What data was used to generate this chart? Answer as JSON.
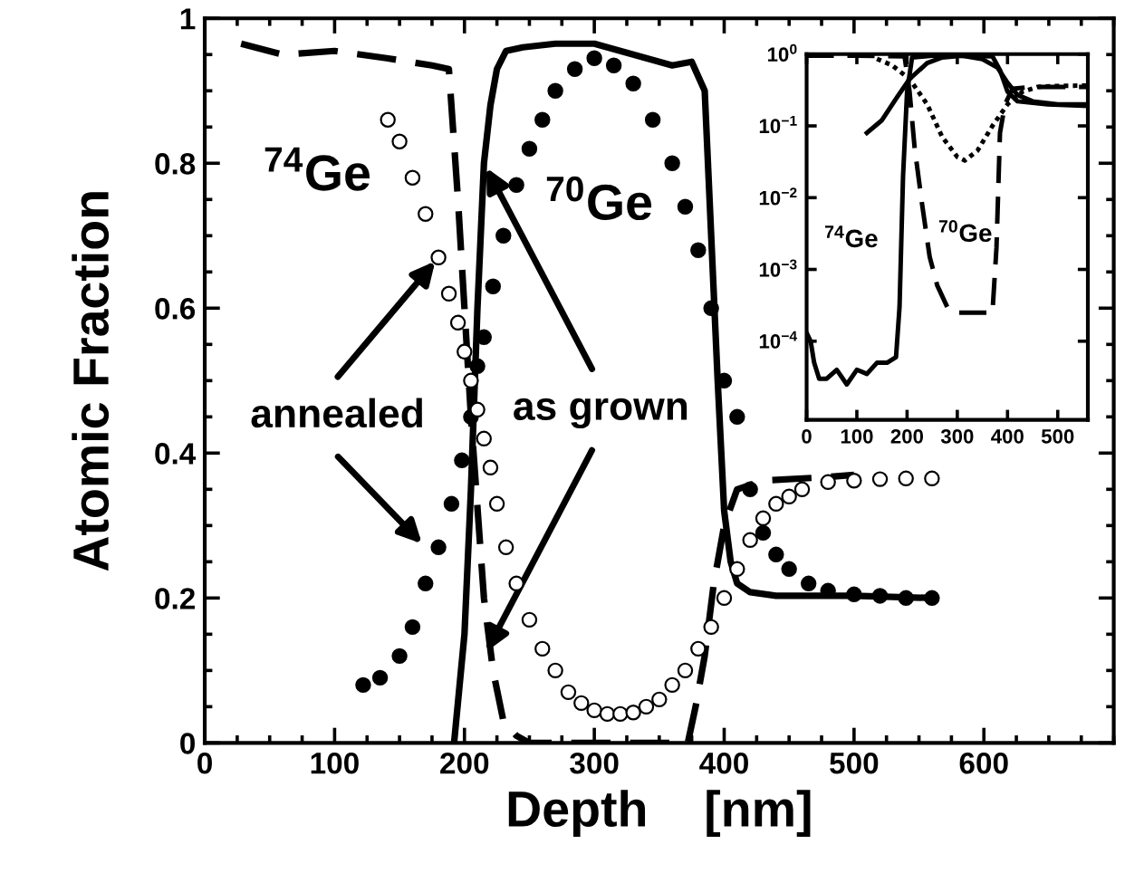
{
  "chart_data": [
    {
      "type": "line",
      "xlabel": "Depth    [nm]",
      "ylabel": "Atomic Fraction",
      "xlim": [
        0,
        700
      ],
      "ylim": [
        0,
        1
      ],
      "xticks": [
        0,
        100,
        200,
        300,
        400,
        500,
        600
      ],
      "yticks": [
        0,
        0.2,
        0.4,
        0.6,
        0.8,
        1
      ],
      "grid": false,
      "legend": false,
      "series": [
        {
          "line_style": "dashed",
          "color": "#000000",
          "x": [
            28,
            60,
            100,
            140,
            175,
            188,
            195,
            205,
            215,
            222,
            230,
            240,
            250,
            300,
            372,
            378,
            385,
            392,
            400,
            410,
            430,
            480,
            500
          ],
          "values": [
            0.965,
            0.95,
            0.955,
            0.945,
            0.935,
            0.93,
            0.75,
            0.45,
            0.2,
            0.1,
            0.03,
            0.01,
            0,
            0,
            0,
            0.05,
            0.12,
            0.22,
            0.3,
            0.35,
            0.362,
            0.367,
            0.37
          ]
        },
        {
          "line_style": "solid",
          "color": "#000000",
          "x": [
            192,
            200,
            205,
            210,
            215,
            220,
            225,
            232,
            245,
            270,
            300,
            330,
            360,
            375,
            385,
            390,
            395,
            400,
            405,
            410,
            420,
            440,
            500,
            560
          ],
          "values": [
            0,
            0.15,
            0.35,
            0.6,
            0.8,
            0.88,
            0.93,
            0.955,
            0.96,
            0.965,
            0.965,
            0.95,
            0.935,
            0.94,
            0.9,
            0.7,
            0.5,
            0.32,
            0.25,
            0.22,
            0.208,
            0.203,
            0.203,
            0.2
          ]
        },
        {
          "type": "scatter",
          "marker": "circle",
          "color": "#000000",
          "x": [
            122,
            135,
            150,
            160,
            170,
            180,
            190,
            198,
            205,
            210,
            215,
            222,
            230,
            240,
            250,
            260,
            270,
            285,
            300,
            315,
            330,
            345,
            360,
            370,
            380,
            390,
            400,
            410,
            420,
            430,
            440,
            450,
            465,
            480,
            500,
            520,
            540,
            560
          ],
          "values": [
            0.08,
            0.09,
            0.12,
            0.16,
            0.22,
            0.27,
            0.33,
            0.39,
            0.45,
            0.52,
            0.56,
            0.63,
            0.7,
            0.77,
            0.82,
            0.86,
            0.9,
            0.93,
            0.945,
            0.935,
            0.91,
            0.86,
            0.8,
            0.74,
            0.68,
            0.6,
            0.5,
            0.45,
            0.35,
            0.29,
            0.26,
            0.24,
            0.22,
            0.21,
            0.205,
            0.203,
            0.2,
            0.2
          ]
        },
        {
          "type": "scatter",
          "marker": "circle",
          "color": "#ffffff",
          "x": [
            141,
            150,
            160,
            170,
            180,
            188,
            195,
            200,
            205,
            210,
            215,
            220,
            225,
            232,
            240,
            250,
            260,
            270,
            280,
            290,
            300,
            310,
            320,
            330,
            340,
            350,
            360,
            370,
            380,
            390,
            400,
            410,
            420,
            430,
            440,
            450,
            460,
            480,
            500,
            520,
            540,
            560
          ],
          "values": [
            0.86,
            0.83,
            0.78,
            0.73,
            0.67,
            0.62,
            0.58,
            0.54,
            0.5,
            0.46,
            0.42,
            0.38,
            0.33,
            0.27,
            0.22,
            0.17,
            0.13,
            0.1,
            0.07,
            0.055,
            0.045,
            0.04,
            0.04,
            0.042,
            0.05,
            0.06,
            0.08,
            0.1,
            0.13,
            0.16,
            0.2,
            0.24,
            0.28,
            0.31,
            0.33,
            0.34,
            0.35,
            0.36,
            0.362,
            0.364,
            0.365,
            0.365
          ]
        }
      ],
      "annotations": [
        "$^{74}$Ge",
        "$^{70}$Ge",
        {
          "text": "annealed",
          "x": 180,
          "y": 0.67
        },
        {
          "text": "as grown",
          "x": 215,
          "y": 0.8
        }
      ]
    },
    {
      "type": "line",
      "log": "y",
      "xlim": [
        0,
        560
      ],
      "ylim": [
        8e-06,
        1
      ],
      "xticks": [
        0,
        100,
        200,
        300,
        400,
        500
      ],
      "yticks": [
        {
          "value": 1,
          "label": "10$^{0}$"
        },
        {
          "value": 0.1,
          "label": "10$^{−1}$"
        },
        {
          "value": 0.01,
          "label": "10$^{−2}$"
        },
        {
          "value": 0.001,
          "label": "10$^{−3}$"
        },
        {
          "value": 0.0001,
          "label": "10$^{−4}$"
        }
      ],
      "grid": false,
      "legend": false,
      "series": [
        {
          "line_style": "solid",
          "color": "#000000",
          "x": [
            0,
            8,
            15,
            25,
            40,
            60,
            80,
            100,
            120,
            140,
            160,
            178,
            185,
            192,
            200,
            210,
            250,
            300,
            370,
            385,
            400,
            420,
            480,
            560
          ],
          "values": [
            0.00013,
            0.0001,
            5e-05,
            3e-05,
            3e-05,
            4e-05,
            2.5e-05,
            4e-05,
            3.5e-05,
            5e-05,
            5e-05,
            6e-05,
            0.0003,
            0.02,
            0.3,
            0.9,
            0.95,
            0.95,
            0.93,
            0.6,
            0.3,
            0.22,
            0.2,
            0.19
          ]
        },
        {
          "line_style": "dashed",
          "color": "#000000",
          "x": [
            0,
            100,
            195,
            205,
            215,
            230,
            245,
            260,
            280,
            300,
            340,
            370,
            378,
            385,
            395,
            410,
            450,
            560
          ],
          "values": [
            0.95,
            0.95,
            0.93,
            0.3,
            0.05,
            0.008,
            0.0015,
            0.0006,
            0.0003,
            0.00025,
            0.00025,
            0.00025,
            0.002,
            0.08,
            0.2,
            0.33,
            0.35,
            0.35
          ]
        },
        {
          "line_style": "solid",
          "color": "#000000",
          "x": [
            120,
            150,
            180,
            205,
            240,
            270,
            310,
            350,
            380,
            400,
            420,
            450,
            500,
            560
          ],
          "values": [
            0.08,
            0.12,
            0.25,
            0.45,
            0.75,
            0.9,
            0.95,
            0.85,
            0.65,
            0.4,
            0.27,
            0.22,
            0.2,
            0.2
          ]
        },
        {
          "line_style": "dotted",
          "color": "#000000",
          "x": [
            140,
            170,
            205,
            240,
            270,
            300,
            315,
            340,
            370,
            400,
            430,
            460,
            500,
            560
          ],
          "values": [
            0.86,
            0.7,
            0.45,
            0.2,
            0.07,
            0.037,
            0.033,
            0.045,
            0.1,
            0.2,
            0.3,
            0.35,
            0.36,
            0.365
          ]
        }
      ],
      "annotations": [
        "$^{74}$Ge",
        "$^{70}$Ge"
      ]
    }
  ]
}
